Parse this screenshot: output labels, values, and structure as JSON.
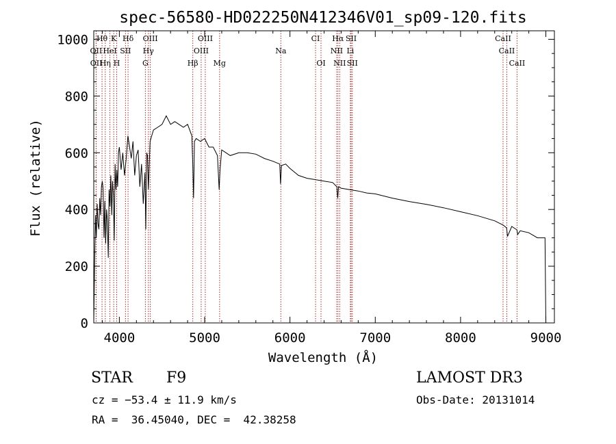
{
  "chart_data": {
    "type": "line",
    "title": "spec-56580-HD022250N412346V01_sp09-120.fits",
    "xlabel": "Wavelength (Å)",
    "ylabel": "Flux (relative)",
    "xlim": [
      3700,
      9100
    ],
    "ylim": [
      0,
      1030
    ],
    "xticks": [
      4000,
      5000,
      6000,
      7000,
      8000,
      9000
    ],
    "yticks": [
      0,
      200,
      400,
      600,
      800,
      1000
    ],
    "series": [
      {
        "name": "flux",
        "x": [
          3700,
          3710,
          3720,
          3730,
          3740,
          3750,
          3760,
          3770,
          3780,
          3790,
          3800,
          3810,
          3820,
          3830,
          3840,
          3850,
          3860,
          3870,
          3880,
          3890,
          3900,
          3910,
          3920,
          3930,
          3940,
          3950,
          3960,
          3970,
          3980,
          3990,
          4000,
          4020,
          4040,
          4060,
          4080,
          4100,
          4120,
          4140,
          4160,
          4180,
          4200,
          4220,
          4240,
          4260,
          4280,
          4300,
          4310,
          4320,
          4330,
          4340,
          4360,
          4380,
          4400,
          4450,
          4500,
          4550,
          4600,
          4650,
          4700,
          4750,
          4800,
          4850,
          4860,
          4870,
          4880,
          4900,
          4950,
          5000,
          5050,
          5100,
          5150,
          5170,
          5180,
          5200,
          5250,
          5300,
          5400,
          5500,
          5600,
          5700,
          5800,
          5880,
          5890,
          5900,
          5950,
          6000,
          6100,
          6200,
          6300,
          6400,
          6500,
          6550,
          6560,
          6570,
          6600,
          6700,
          6800,
          6900,
          7000,
          7200,
          7400,
          7600,
          7800,
          8000,
          8200,
          8400,
          8500,
          8540,
          8550,
          8600,
          8660,
          8670,
          8700,
          8800,
          8900,
          8990,
          9000
        ],
        "y": [
          0,
          210,
          380,
          300,
          420,
          350,
          330,
          440,
          380,
          480,
          500,
          470,
          300,
          430,
          280,
          400,
          360,
          230,
          470,
          410,
          520,
          380,
          500,
          450,
          290,
          560,
          470,
          540,
          480,
          600,
          620,
          540,
          600,
          520,
          580,
          660,
          620,
          580,
          640,
          520,
          590,
          610,
          480,
          560,
          420,
          530,
          330,
          600,
          590,
          470,
          640,
          660,
          680,
          690,
          700,
          730,
          700,
          710,
          700,
          690,
          700,
          660,
          560,
          440,
          640,
          650,
          640,
          650,
          620,
          620,
          590,
          470,
          540,
          610,
          600,
          590,
          600,
          600,
          595,
          580,
          570,
          560,
          490,
          555,
          560,
          545,
          520,
          510,
          505,
          500,
          495,
          480,
          440,
          480,
          475,
          470,
          465,
          458,
          455,
          440,
          428,
          418,
          406,
          392,
          378,
          360,
          345,
          335,
          305,
          340,
          328,
          312,
          325,
          318,
          300,
          300,
          0
        ]
      }
    ],
    "lines": [
      {
        "label": "Hθ",
        "x": 3797,
        "row": 0
      },
      {
        "label": "K",
        "x": 3934,
        "row": 0
      },
      {
        "label": "Hδ",
        "x": 4102,
        "row": 0
      },
      {
        "label": "OIII",
        "x": 4363,
        "row": 0
      },
      {
        "label": "OIII",
        "x": 5007,
        "row": 0
      },
      {
        "label": "CI",
        "x": 6300,
        "row": 0
      },
      {
        "label": "Hα",
        "x": 6563,
        "row": 0
      },
      {
        "label": "SII",
        "x": 6717,
        "row": 0
      },
      {
        "label": "CaII",
        "x": 8498,
        "row": 0
      },
      {
        "label": "OII",
        "x": 3727,
        "row": 1
      },
      {
        "label": "HeI",
        "x": 3889,
        "row": 1
      },
      {
        "label": "SII",
        "x": 4072,
        "row": 1
      },
      {
        "label": "Hγ",
        "x": 4340,
        "row": 1
      },
      {
        "label": "OIII",
        "x": 4959,
        "row": 1
      },
      {
        "label": "Na",
        "x": 5893,
        "row": 1
      },
      {
        "label": "NII",
        "x": 6548,
        "row": 1
      },
      {
        "label": "Li",
        "x": 6708,
        "row": 1
      },
      {
        "label": "CaII",
        "x": 8542,
        "row": 1
      },
      {
        "label": "OII",
        "x": 3729,
        "row": 2
      },
      {
        "label": "Hη",
        "x": 3835,
        "row": 2
      },
      {
        "label": "H",
        "x": 3969,
        "row": 2
      },
      {
        "label": "G",
        "x": 4305,
        "row": 2
      },
      {
        "label": "Hβ",
        "x": 4861,
        "row": 2
      },
      {
        "label": "Mg",
        "x": 5175,
        "row": 2
      },
      {
        "label": "OI",
        "x": 6364,
        "row": 2
      },
      {
        "label": "NII",
        "x": 6583,
        "row": 2
      },
      {
        "label": "SII",
        "x": 6731,
        "row": 2
      },
      {
        "label": "CaII",
        "x": 8662,
        "row": 2
      }
    ]
  },
  "info": {
    "class_label": "STAR",
    "subclass": "F9",
    "cz": "cz = −53.4 ± 11.9 km/s",
    "radec": "RA =  36.45040, DEC =  42.38258",
    "survey": "LAMOST DR3",
    "obs_date": "Obs-Date: 20131014"
  },
  "colors": {
    "line_marker": "#a52a2a",
    "spectrum": "#000000"
  }
}
